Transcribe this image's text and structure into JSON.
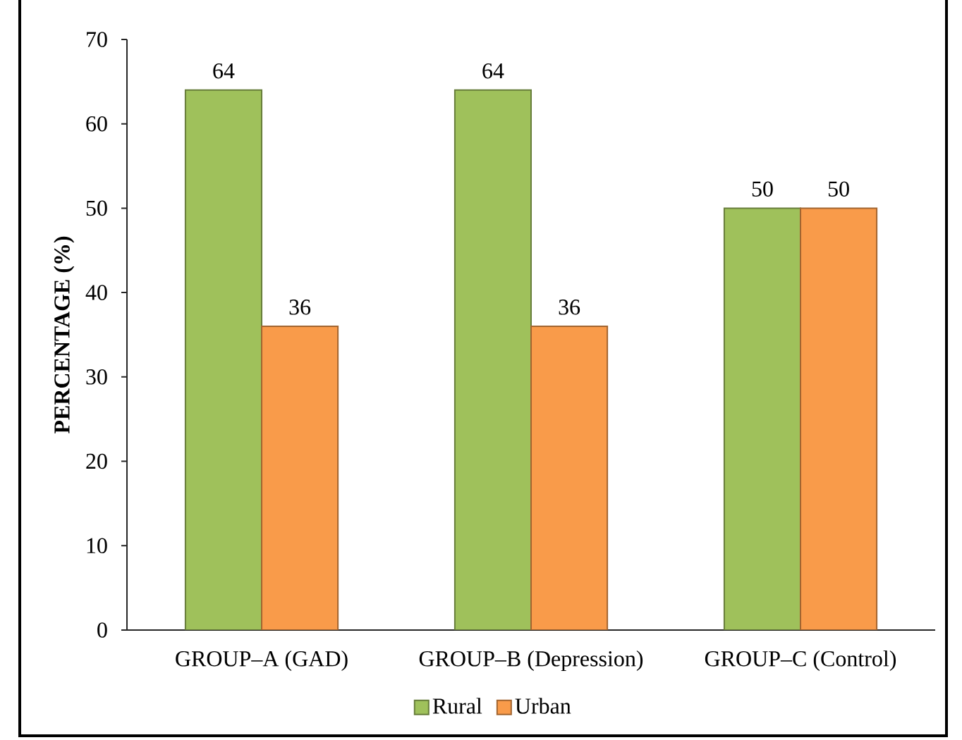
{
  "chart_data": {
    "type": "bar",
    "ylabel": "PERCENTAGE (%)",
    "categories": [
      "GROUP–A (GAD)",
      "GROUP–B (Depression)",
      "GROUP–C (Control)"
    ],
    "series": [
      {
        "name": "Rural",
        "color": "#9fc15b",
        "values": [
          64,
          64,
          50
        ]
      },
      {
        "name": "Urban",
        "color": "#f99b4a",
        "values": [
          36,
          36,
          50
        ]
      }
    ],
    "ylim": [
      0,
      70
    ],
    "yticks": [
      0,
      10,
      20,
      30,
      40,
      50,
      60,
      70
    ],
    "legend": "bottom",
    "data_labels": true
  }
}
